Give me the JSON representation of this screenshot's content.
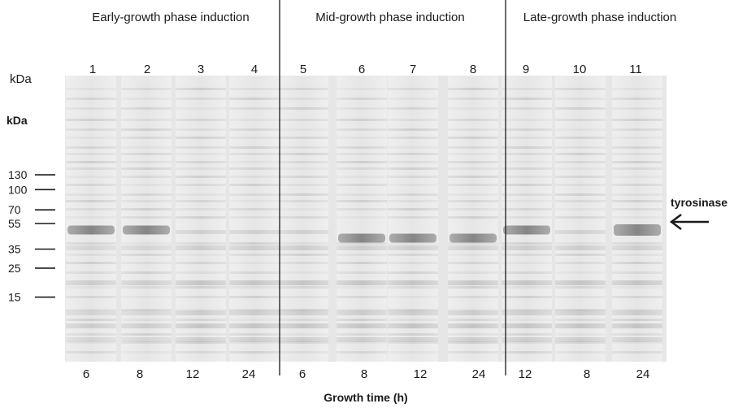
{
  "phases": [
    {
      "label": "Early-growth phase induction"
    },
    {
      "label": "Mid-growth phase induction"
    },
    {
      "label": "Late-growth phase induction"
    }
  ],
  "top_kda_label": "kDa",
  "marker_kda_label": "kDa",
  "lanes": [
    {
      "number": "1",
      "time": "6"
    },
    {
      "number": "2",
      "time": "8"
    },
    {
      "number": "3",
      "time": "12"
    },
    {
      "number": "4",
      "time": "24"
    },
    {
      "number": "5",
      "time": "6"
    },
    {
      "number": "6",
      "time": "8"
    },
    {
      "number": "7",
      "time": "12"
    },
    {
      "number": "8",
      "time": "24"
    },
    {
      "number": "9",
      "time": "12"
    },
    {
      "number": "10",
      "time": "8"
    },
    {
      "number": "11",
      "time": "24"
    }
  ],
  "markers": [
    {
      "label": "130",
      "kda": 130
    },
    {
      "label": "100",
      "kda": 100
    },
    {
      "label": "70",
      "kda": 70
    },
    {
      "label": "55",
      "kda": 55
    },
    {
      "label": "35",
      "kda": 35
    },
    {
      "label": "25",
      "kda": 25
    },
    {
      "label": "15",
      "kda": 15
    }
  ],
  "band_label": "tyrosinase",
  "x_axis_label": "Growth time (h)",
  "colors": {
    "gel_background": "#e6e6e6",
    "band": "#8f8f8f",
    "strong_band": "#6f6f6f",
    "text": "#1a1a1a"
  }
}
